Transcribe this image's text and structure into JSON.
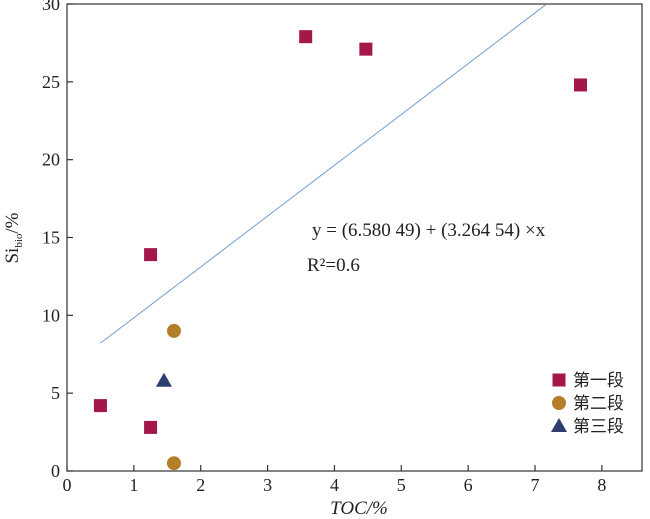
{
  "chart_data": {
    "type": "scatter",
    "xlabel": "TOC/%",
    "ylabel": "Si",
    "ylabel_sub": "bio",
    "ylabel_unit": "/%",
    "xlim": [
      0,
      8.6
    ],
    "ylim": [
      0,
      30
    ],
    "xticks": [
      "0",
      "1",
      "2",
      "3",
      "4",
      "5",
      "6",
      "7",
      "8"
    ],
    "yticks": [
      "0",
      "5",
      "10",
      "15",
      "20",
      "25",
      "30"
    ],
    "grid": false,
    "legend_position": "bottom-right",
    "series": [
      {
        "name": "第一段",
        "marker": "square",
        "color": "#a3174a",
        "points": [
          {
            "x": 0.5,
            "y": 4.2
          },
          {
            "x": 1.25,
            "y": 2.8
          },
          {
            "x": 1.25,
            "y": 13.9
          },
          {
            "x": 3.57,
            "y": 27.9
          },
          {
            "x": 4.47,
            "y": 27.1
          },
          {
            "x": 7.68,
            "y": 24.8
          }
        ]
      },
      {
        "name": "第二段",
        "marker": "circle",
        "color": "#b47d27",
        "points": [
          {
            "x": 1.6,
            "y": 9.0
          },
          {
            "x": 1.6,
            "y": 0.5
          }
        ]
      },
      {
        "name": "第三段",
        "marker": "triangle",
        "color": "#2c3f6e",
        "points": [
          {
            "x": 1.45,
            "y": 5.8
          }
        ]
      }
    ],
    "fit_line": {
      "color": "#6f9fd0",
      "x_range": [
        0.5,
        7.17
      ],
      "intercept": 6.58049,
      "slope": 3.26454
    },
    "annotations": {
      "equation": "y = (6.580 49) + (3.264 54) ×x",
      "r2": "R²=0.6"
    }
  }
}
